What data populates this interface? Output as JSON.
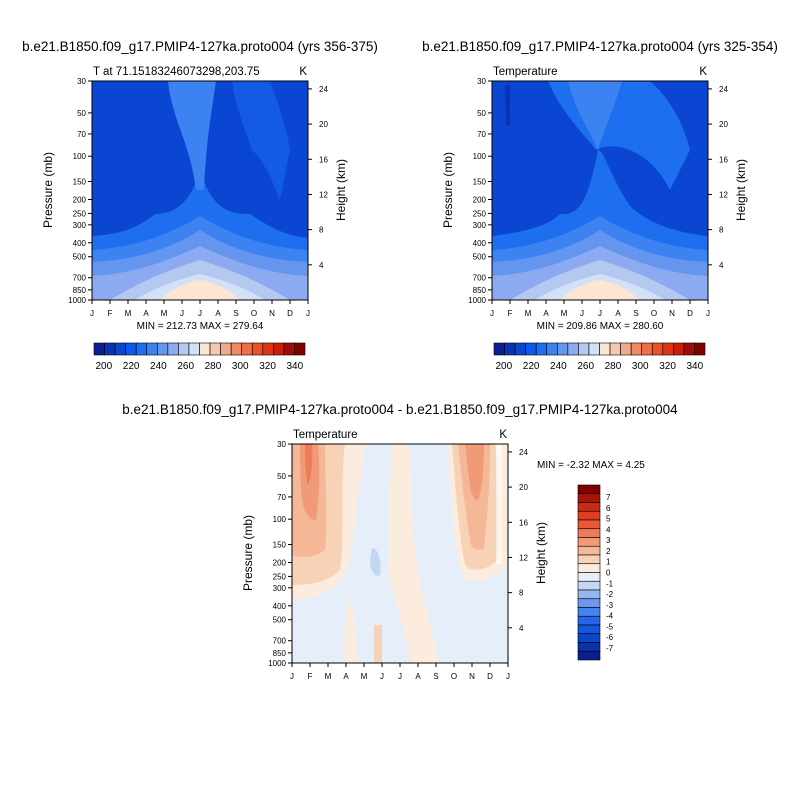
{
  "palette": {
    "fill": [
      "#0a1e96",
      "#0a32b4",
      "#0a46d2",
      "#0a5aeb",
      "#1e6ef0",
      "#3c82f0",
      "#6496f0",
      "#8caaf0",
      "#b4c8f0",
      "#d2e1f5",
      "#fae6d2",
      "#f5c8aa",
      "#f0aa8c",
      "#f08c64",
      "#f06e46",
      "#eb5028",
      "#e13214",
      "#c81e0a",
      "#a00a0a",
      "#820000"
    ],
    "neg": [
      "#0a1e8c",
      "#0a32aa",
      "#0a46c8",
      "#1455e1",
      "#2864eb",
      "#4682f0",
      "#6e96f0",
      "#96b4f0",
      "#c3d7f5",
      "#e6eefa"
    ],
    "pos": [
      "#fcecde",
      "#f8d2b6",
      "#f4b896",
      "#f09a78",
      "#ee7c58",
      "#ea5a38",
      "#e03c1e",
      "#c82a12",
      "#a6140a",
      "#800000"
    ]
  },
  "chart_data": [
    {
      "type": "contour",
      "title": "b.e21.B1850.f09_g17.PMIP4-127ka.proto004 (yrs 356-375)",
      "left_label": "T at 71.15183246073298,203.75",
      "right_label": "K",
      "ylabel": "Pressure (mb)",
      "y2label": "Height (km)",
      "x_ticks": [
        "J",
        "F",
        "M",
        "A",
        "M",
        "J",
        "J",
        "A",
        "S",
        "O",
        "N",
        "D",
        "J"
      ],
      "y_ticks": [
        "30",
        "50",
        "70",
        "100",
        "150",
        "200",
        "250",
        "300",
        "400",
        "500",
        "700",
        "850",
        "1000"
      ],
      "y_tick_values": [
        30,
        50,
        70,
        100,
        150,
        200,
        250,
        300,
        400,
        500,
        700,
        850,
        1000
      ],
      "y2_ticks": [
        "24",
        "20",
        "16",
        "12",
        "8",
        "4"
      ],
      "y2_tick_values": [
        24,
        20,
        16,
        12,
        8,
        4
      ],
      "stats": "MIN = 212.73 MAX = 279.64",
      "colorbar": {
        "orientation": "horizontal",
        "labels": [
          "200",
          "220",
          "240",
          "260",
          "280",
          "300",
          "320",
          "340"
        ],
        "label_values": [
          200,
          220,
          240,
          260,
          280,
          300,
          320,
          340
        ],
        "levels": [
          195,
          200,
          205,
          210,
          215,
          220,
          225,
          230,
          235,
          240,
          245,
          250,
          255,
          260,
          265,
          270,
          275,
          280,
          285,
          290,
          295,
          300,
          305,
          310,
          315,
          320,
          325,
          330,
          335,
          340,
          345
        ]
      }
    },
    {
      "type": "contour",
      "title": "b.e21.B1850.f09_g17.PMIP4-127ka.proto004 (yrs 325-354)",
      "left_label": "Temperature",
      "right_label": "K",
      "ylabel": "Pressure (mb)",
      "y2label": "Height (km)",
      "x_ticks": [
        "J",
        "F",
        "M",
        "A",
        "M",
        "J",
        "J",
        "A",
        "S",
        "O",
        "N",
        "D",
        "J"
      ],
      "y_ticks": [
        "30",
        "50",
        "70",
        "100",
        "150",
        "200",
        "250",
        "300",
        "400",
        "500",
        "700",
        "850",
        "1000"
      ],
      "y_tick_values": [
        30,
        50,
        70,
        100,
        150,
        200,
        250,
        300,
        400,
        500,
        700,
        850,
        1000
      ],
      "y2_ticks": [
        "24",
        "20",
        "16",
        "12",
        "8",
        "4"
      ],
      "y2_tick_values": [
        24,
        20,
        16,
        12,
        8,
        4
      ],
      "stats": "MIN = 209.86 MAX = 280.60",
      "colorbar": {
        "orientation": "horizontal",
        "labels": [
          "200",
          "220",
          "240",
          "260",
          "280",
          "300",
          "320",
          "340"
        ],
        "label_values": [
          200,
          220,
          240,
          260,
          280,
          300,
          320,
          340
        ],
        "levels": [
          195,
          200,
          205,
          210,
          215,
          220,
          225,
          230,
          235,
          240,
          245,
          250,
          255,
          260,
          265,
          270,
          275,
          280,
          285,
          290,
          295,
          300,
          305,
          310,
          315,
          320,
          325,
          330,
          335,
          340,
          345
        ]
      }
    },
    {
      "type": "contour",
      "title": "b.e21.B1850.f09_g17.PMIP4-127ka.proto004 - b.e21.B1850.f09_g17.PMIP4-127ka.proto004",
      "left_label": "Temperature",
      "right_label": "K",
      "ylabel": "Pressure (mb)",
      "y2label": "Height (km)",
      "x_ticks": [
        "J",
        "F",
        "M",
        "A",
        "M",
        "J",
        "J",
        "A",
        "S",
        "O",
        "N",
        "D",
        "J"
      ],
      "y_ticks": [
        "30",
        "50",
        "70",
        "100",
        "150",
        "200",
        "250",
        "300",
        "400",
        "500",
        "700",
        "850",
        "1000"
      ],
      "y_tick_values": [
        30,
        50,
        70,
        100,
        150,
        200,
        250,
        300,
        400,
        500,
        700,
        850,
        1000
      ],
      "y2_ticks": [
        "24",
        "20",
        "16",
        "12",
        "8",
        "4"
      ],
      "y2_tick_values": [
        24,
        20,
        16,
        12,
        8,
        4
      ],
      "stats": "MIN =  -2.32 MAX =   4.25",
      "colorbar": {
        "orientation": "vertical",
        "labels": [
          "7",
          "6",
          "5",
          "4",
          "3",
          "2",
          "1",
          "0",
          "-1",
          "-2",
          "-3",
          "-4",
          "-5",
          "-6",
          "-7"
        ],
        "label_values": [
          7,
          6,
          5,
          4,
          3,
          2,
          1,
          0,
          -1,
          -2,
          -3,
          -4,
          -5,
          -6,
          -7
        ]
      }
    }
  ]
}
